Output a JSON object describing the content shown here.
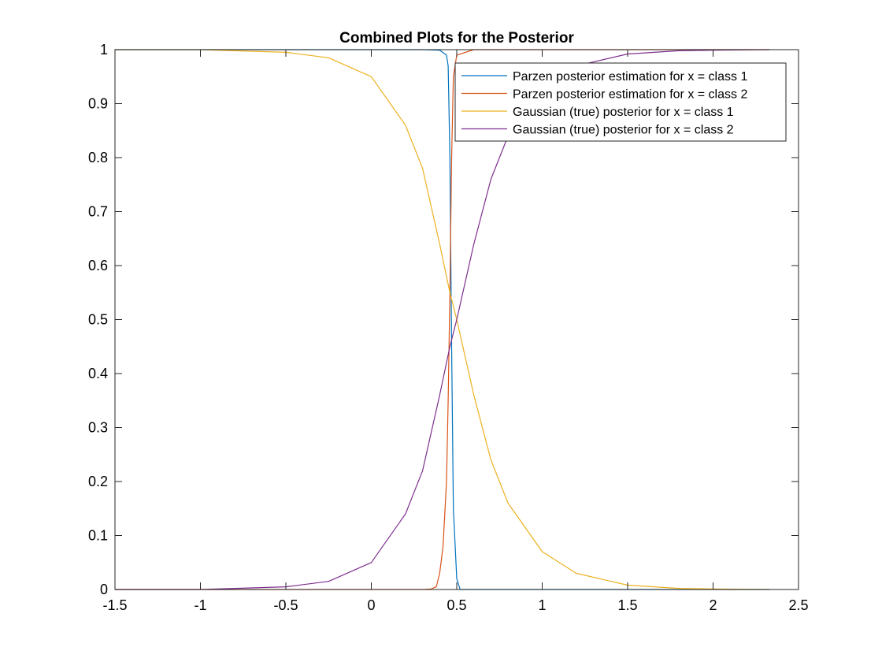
{
  "chart_data": {
    "type": "line",
    "title": "Combined Plots for the Posterior",
    "xlabel": "",
    "ylabel": "",
    "xlim": [
      -1.5,
      2.5
    ],
    "ylim": [
      0,
      1
    ],
    "x_ticks": [
      -1.5,
      -1,
      -0.5,
      0,
      0.5,
      1,
      1.5,
      2,
      2.5
    ],
    "x_tick_labels": [
      "-1.5",
      "-1",
      "-0.5",
      "0",
      "0.5",
      "1",
      "1.5",
      "2",
      "2.5"
    ],
    "y_ticks": [
      0,
      0.1,
      0.2,
      0.3,
      0.4,
      0.5,
      0.6,
      0.7,
      0.8,
      0.9,
      1
    ],
    "y_tick_labels": [
      "0",
      "0.1",
      "0.2",
      "0.3",
      "0.4",
      "0.5",
      "0.6",
      "0.7",
      "0.8",
      "0.9",
      "1"
    ],
    "grid": false,
    "legend_position": "top-right",
    "series": [
      {
        "name": "Parzen posterior estimation for x = class 1",
        "color": "#0072BD",
        "x": [
          -1.5,
          0.0,
          0.3,
          0.4,
          0.44,
          0.45,
          0.46,
          0.47,
          0.48,
          0.5,
          0.52,
          0.6,
          1.0,
          2.33
        ],
        "y": [
          1.0,
          1.0,
          1.0,
          0.999,
          0.99,
          0.97,
          0.8,
          0.45,
          0.15,
          0.02,
          0.0,
          0.0,
          0.0,
          0.0
        ]
      },
      {
        "name": "Parzen posterior estimation for x = class 2",
        "color": "#D95319",
        "x": [
          -1.5,
          0.0,
          0.3,
          0.35,
          0.38,
          0.4,
          0.42,
          0.44,
          0.45,
          0.46,
          0.47,
          0.48,
          0.5,
          0.6,
          2.33
        ],
        "y": [
          0.0,
          0.0,
          0.0,
          0.001,
          0.005,
          0.03,
          0.08,
          0.2,
          0.35,
          0.55,
          0.8,
          0.95,
          0.99,
          1.0,
          1.0
        ]
      },
      {
        "name": "Gaussian (true) posterior for x = class 1",
        "color": "#EDB120",
        "x": [
          -1.5,
          -1.0,
          -0.5,
          -0.25,
          0.0,
          0.2,
          0.3,
          0.4,
          0.46,
          0.5,
          0.6,
          0.7,
          0.8,
          1.0,
          1.2,
          1.5,
          1.8,
          2.0,
          2.33
        ],
        "y": [
          1.0,
          1.0,
          0.995,
          0.985,
          0.95,
          0.86,
          0.78,
          0.64,
          0.55,
          0.5,
          0.36,
          0.24,
          0.16,
          0.07,
          0.03,
          0.008,
          0.002,
          0.001,
          0.0
        ]
      },
      {
        "name": "Gaussian (true) posterior for x = class 2",
        "color": "#7E2F8E",
        "x": [
          -1.5,
          -1.0,
          -0.5,
          -0.25,
          0.0,
          0.2,
          0.3,
          0.4,
          0.46,
          0.5,
          0.6,
          0.7,
          0.8,
          1.0,
          1.2,
          1.5,
          1.8,
          2.0,
          2.33
        ],
        "y": [
          0.0,
          0.0,
          0.005,
          0.015,
          0.05,
          0.14,
          0.22,
          0.36,
          0.45,
          0.5,
          0.64,
          0.76,
          0.84,
          0.93,
          0.97,
          0.992,
          0.998,
          0.999,
          1.0
        ]
      }
    ]
  }
}
